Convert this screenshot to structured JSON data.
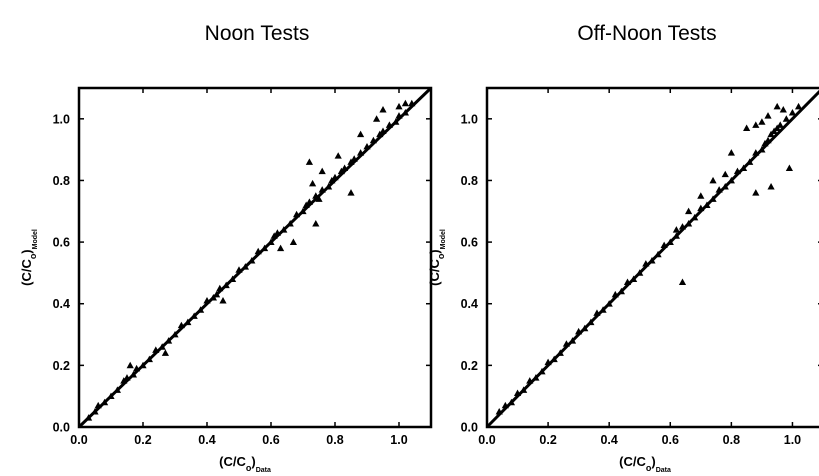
{
  "chart_data": [
    {
      "type": "scatter",
      "title": "Noon Tests",
      "xlabel": "(C/C",
      "xlabel_sub": "o",
      "xlabel_sub2": "Data",
      "ylabel": "(C/C",
      "ylabel_sub": "o",
      "ylabel_sub2": "Model",
      "xlim": [
        0.0,
        1.1
      ],
      "ylim": [
        0.0,
        1.1
      ],
      "xticks": [
        "0.0",
        "0.2",
        "0.4",
        "0.6",
        "0.8",
        "1.0"
      ],
      "yticks": [
        "0.0",
        "0.2",
        "0.4",
        "0.6",
        "0.8",
        "1.0"
      ],
      "grid": false,
      "marker": "triangle",
      "reference_line": {
        "x": [
          0.0,
          1.1
        ],
        "y": [
          0.0,
          1.1
        ]
      },
      "series": [
        {
          "x": [
            0.03,
            0.05,
            0.06,
            0.08,
            0.1,
            0.12,
            0.14,
            0.15,
            0.17,
            0.18,
            0.2,
            0.22,
            0.24,
            0.26,
            0.28,
            0.3,
            0.32,
            0.34,
            0.36,
            0.38,
            0.4,
            0.42,
            0.44,
            0.46,
            0.48,
            0.5,
            0.52,
            0.54,
            0.56,
            0.58,
            0.6,
            0.62,
            0.64,
            0.66,
            0.68,
            0.7,
            0.71,
            0.72,
            0.74,
            0.75,
            0.76,
            0.78,
            0.79,
            0.8,
            0.82,
            0.83,
            0.85,
            0.86,
            0.88,
            0.9,
            0.92,
            0.94,
            0.95,
            0.97,
            0.99,
            1.0,
            1.02,
            1.04,
            0.16,
            0.27,
            0.43,
            0.45,
            0.61,
            0.63,
            0.67,
            0.72,
            0.74,
            0.76,
            0.81,
            0.88,
            0.93,
            0.95,
            1.0,
            1.02,
            0.85,
            0.73
          ],
          "y": [
            0.03,
            0.05,
            0.07,
            0.08,
            0.1,
            0.12,
            0.15,
            0.16,
            0.17,
            0.19,
            0.2,
            0.22,
            0.25,
            0.26,
            0.28,
            0.3,
            0.33,
            0.34,
            0.36,
            0.38,
            0.41,
            0.42,
            0.45,
            0.46,
            0.48,
            0.51,
            0.52,
            0.54,
            0.57,
            0.58,
            0.6,
            0.63,
            0.64,
            0.66,
            0.69,
            0.7,
            0.72,
            0.73,
            0.75,
            0.74,
            0.77,
            0.78,
            0.8,
            0.81,
            0.83,
            0.84,
            0.86,
            0.87,
            0.89,
            0.91,
            0.93,
            0.95,
            0.96,
            0.98,
            0.99,
            1.01,
            1.02,
            1.05,
            0.2,
            0.24,
            0.43,
            0.41,
            0.62,
            0.58,
            0.6,
            0.86,
            0.66,
            0.83,
            0.88,
            0.95,
            1.0,
            1.03,
            1.04,
            1.05,
            0.76,
            0.79
          ]
        }
      ]
    },
    {
      "type": "scatter",
      "title": "Off-Noon Tests",
      "xlabel": "(C/C",
      "xlabel_sub": "o",
      "xlabel_sub2": "Data",
      "ylabel": "(C/C",
      "ylabel_sub": "o",
      "ylabel_sub2": "Model",
      "xlim": [
        0.0,
        1.1
      ],
      "ylim": [
        0.0,
        1.1
      ],
      "xticks": [
        "0.0",
        "0.2",
        "0.4",
        "0.6",
        "0.8",
        "1.0"
      ],
      "yticks": [
        "0.0",
        "0.2",
        "0.4",
        "0.6",
        "0.8",
        "1.0"
      ],
      "grid": false,
      "marker": "triangle",
      "reference_line": {
        "x": [
          0.0,
          1.1
        ],
        "y": [
          0.0,
          1.1
        ]
      },
      "series": [
        {
          "x": [
            0.04,
            0.06,
            0.08,
            0.1,
            0.12,
            0.14,
            0.16,
            0.18,
            0.2,
            0.22,
            0.24,
            0.26,
            0.28,
            0.3,
            0.32,
            0.34,
            0.36,
            0.38,
            0.4,
            0.42,
            0.44,
            0.46,
            0.48,
            0.5,
            0.52,
            0.54,
            0.56,
            0.58,
            0.6,
            0.62,
            0.64,
            0.66,
            0.68,
            0.7,
            0.72,
            0.74,
            0.76,
            0.78,
            0.8,
            0.82,
            0.84,
            0.86,
            0.88,
            0.9,
            0.91,
            0.92,
            0.93,
            0.94,
            0.95,
            0.96,
            0.98,
            1.0,
            1.02,
            0.62,
            0.66,
            0.7,
            0.74,
            0.78,
            0.8,
            0.85,
            0.88,
            0.9,
            0.92,
            0.95,
            0.97,
            0.64,
            0.88,
            0.93,
            0.99
          ],
          "y": [
            0.05,
            0.07,
            0.08,
            0.11,
            0.12,
            0.15,
            0.16,
            0.18,
            0.21,
            0.22,
            0.24,
            0.27,
            0.28,
            0.31,
            0.32,
            0.34,
            0.37,
            0.38,
            0.4,
            0.43,
            0.44,
            0.47,
            0.48,
            0.5,
            0.53,
            0.54,
            0.56,
            0.59,
            0.6,
            0.62,
            0.65,
            0.66,
            0.68,
            0.71,
            0.72,
            0.74,
            0.77,
            0.78,
            0.8,
            0.83,
            0.84,
            0.86,
            0.89,
            0.9,
            0.92,
            0.93,
            0.95,
            0.96,
            0.97,
            0.98,
            1.0,
            1.02,
            1.04,
            0.64,
            0.7,
            0.75,
            0.8,
            0.82,
            0.89,
            0.97,
            0.98,
            0.99,
            1.01,
            1.04,
            1.03,
            0.47,
            0.76,
            0.78,
            0.84
          ]
        }
      ]
    }
  ]
}
